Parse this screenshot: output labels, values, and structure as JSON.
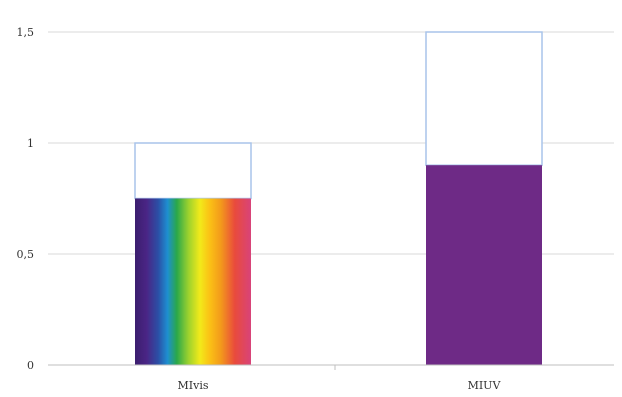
{
  "chart_data": {
    "type": "bar",
    "categories": [
      "MIvis",
      "MIUV"
    ],
    "series": [
      {
        "values": [
          0.75,
          0.9
        ]
      },
      {
        "values": [
          0.25,
          0.6
        ]
      }
    ],
    "stacked": true,
    "ylim": [
      0,
      1.5
    ],
    "yticks": [
      0,
      0.5,
      1,
      1.5
    ],
    "ytick_labels": [
      "0",
      "0,5",
      "1",
      "1,5"
    ],
    "grid": true,
    "legend": "none",
    "colors": {
      "mivis_fill": "spectrum",
      "miuv_fill": "#6e2a86",
      "outline": "#a9c4ea",
      "grid": "#d9d9d9"
    }
  }
}
